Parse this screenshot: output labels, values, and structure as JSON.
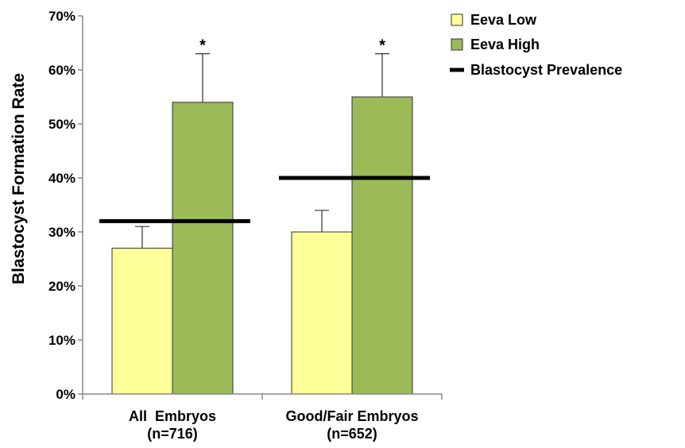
{
  "chart_data": {
    "type": "bar",
    "title": "",
    "xlabel": "",
    "ylabel": "Blastocyst Formation Rate",
    "ylim": [
      0,
      70
    ],
    "y_ticks": [
      "0%",
      "10%",
      "20%",
      "30%",
      "40%",
      "50%",
      "60%",
      "70%"
    ],
    "y_tick_values": [
      0,
      10,
      20,
      30,
      40,
      50,
      60,
      70
    ],
    "categories": [
      [
        "All  Embryos",
        "(n=716)"
      ],
      [
        "Good/Fair Embryos",
        "(n=652)"
      ]
    ],
    "series": [
      {
        "name": "Eeva Low",
        "values": [
          27,
          30
        ],
        "errors": [
          4,
          4
        ],
        "color": "#FFFF99"
      },
      {
        "name": "Eeva High",
        "values": [
          54,
          55
        ],
        "errors": [
          9,
          8
        ],
        "color": "#9BBB59"
      }
    ],
    "reference_lines": [
      {
        "name": "Blastocyst Prevalence",
        "values": [
          32,
          40
        ],
        "color": "#000000"
      }
    ],
    "annotations": [
      {
        "series": 1,
        "category": 0,
        "text": "*"
      },
      {
        "series": 1,
        "category": 1,
        "text": "*"
      }
    ],
    "grid": false,
    "legend_position": "top-right"
  }
}
